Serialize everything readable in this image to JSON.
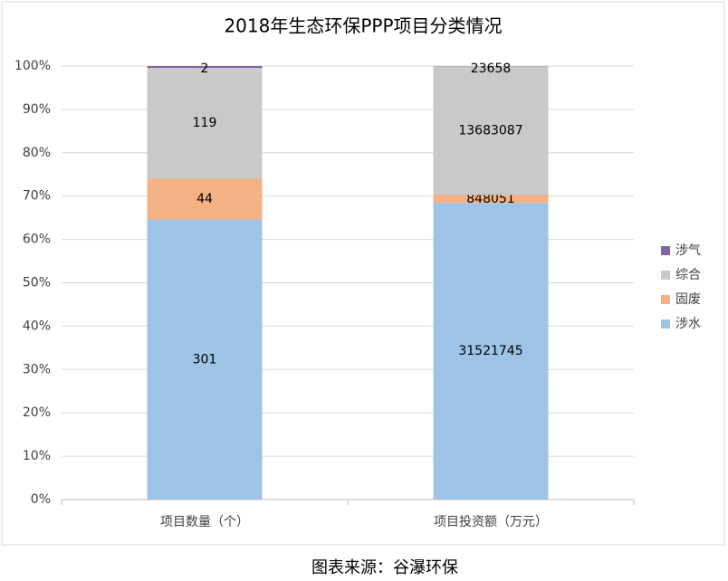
{
  "chart_data": {
    "type": "bar",
    "stacking": "percent",
    "title": "2018年生态环保PPP项目分类情况",
    "source": "图表来源：谷瀑环保",
    "categories": [
      "项目数量（个）",
      "项目投资额（万元）"
    ],
    "series": [
      {
        "name": "涉水",
        "color": "#9dc3e6",
        "values": [
          301,
          31521745
        ]
      },
      {
        "name": "固废",
        "color": "#f4b183",
        "values": [
          44,
          848051
        ]
      },
      {
        "name": "综合",
        "color": "#c9c9c9",
        "values": [
          119,
          13683087
        ]
      },
      {
        "name": "涉气",
        "color": "#8064a2",
        "values": [
          2,
          23658
        ]
      }
    ],
    "ylim": [
      0,
      100
    ],
    "yticks": [
      {
        "value": 0,
        "label": "0%"
      },
      {
        "value": 10,
        "label": "10%"
      },
      {
        "value": 20,
        "label": "20%"
      },
      {
        "value": 30,
        "label": "30%"
      },
      {
        "value": 40,
        "label": "40%"
      },
      {
        "value": 50,
        "label": "50%"
      },
      {
        "value": 60,
        "label": "60%"
      },
      {
        "value": 70,
        "label": "70%"
      },
      {
        "value": 80,
        "label": "80%"
      },
      {
        "value": 90,
        "label": "90%"
      },
      {
        "value": 100,
        "label": "100%"
      }
    ],
    "grid": true,
    "legend": "right"
  }
}
